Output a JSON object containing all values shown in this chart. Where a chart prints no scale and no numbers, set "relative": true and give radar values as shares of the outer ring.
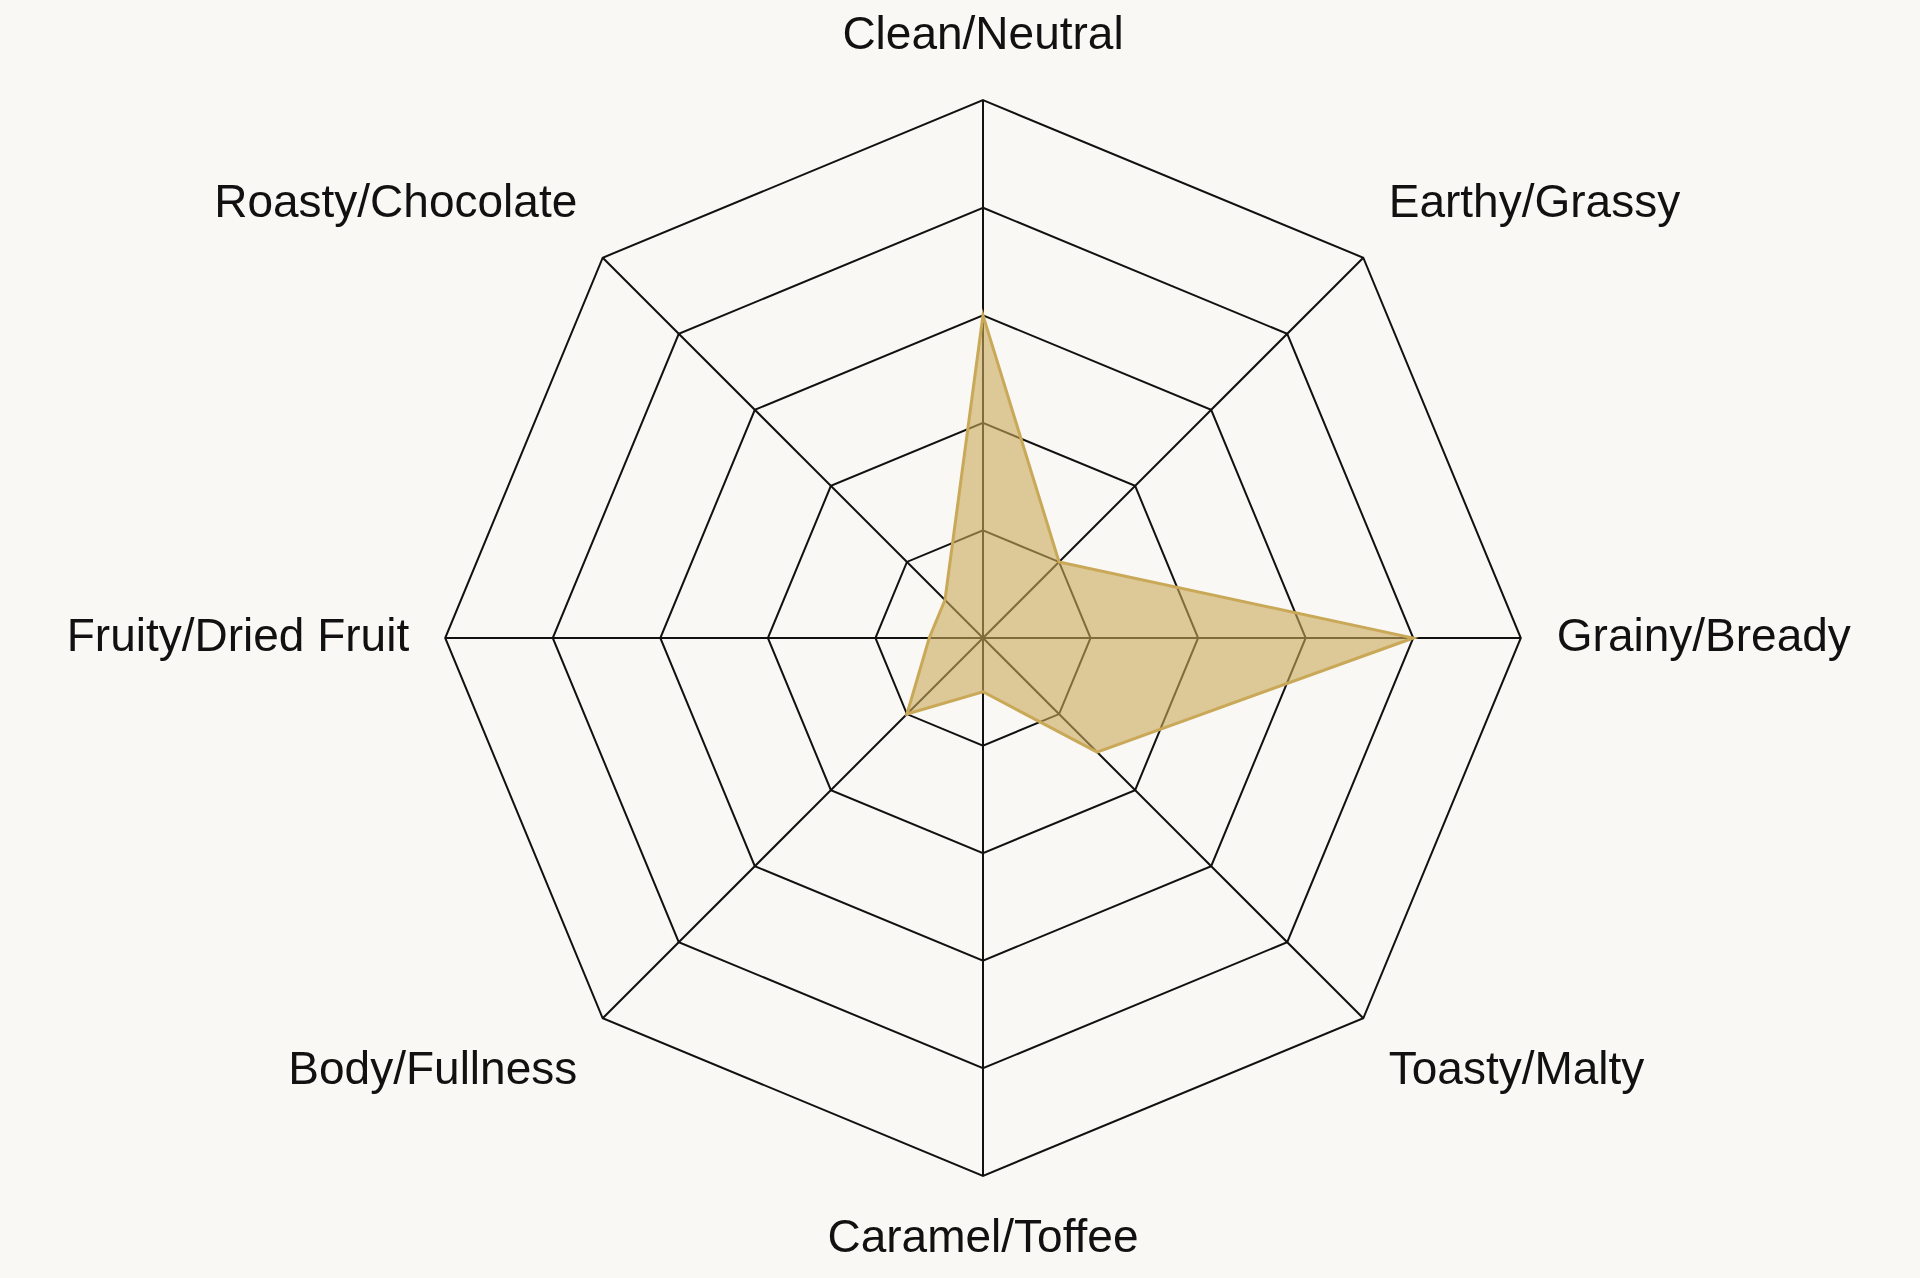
{
  "chart_data": {
    "type": "radar",
    "relative": true,
    "grid": true,
    "legend": false,
    "marker": "none",
    "categories": [
      "Clean/Neutral",
      "Earthy/Grassy",
      "Grainy/Bready",
      "Toasty/Malty",
      "Caramel/Toffee",
      "Body/Fullness",
      "Fruity/Dried Fruit",
      "Roasty/Chocolate"
    ],
    "series": [
      {
        "color": "#c9a858",
        "values": [
          0.6,
          0.2,
          0.8,
          0.3,
          0.1,
          0.2,
          0.1,
          0.1
        ]
      }
    ]
  }
}
